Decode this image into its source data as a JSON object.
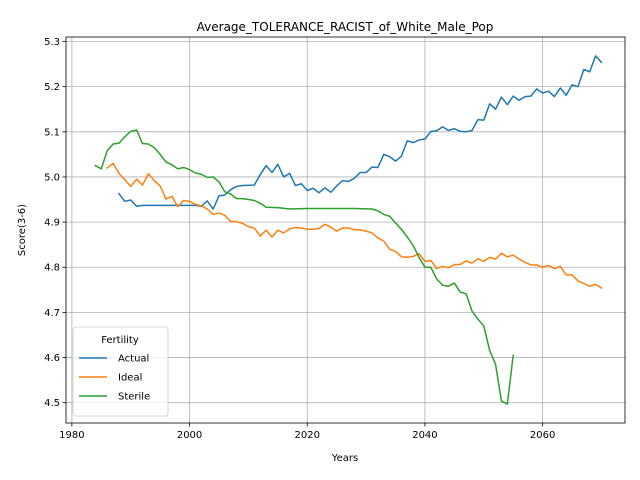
{
  "chart_data": {
    "type": "line",
    "title": "Average_TOLERANCE_RACIST_of_White_Male_Pop",
    "xlabel": "Years",
    "ylabel": "Score(3-6)",
    "xlim": [
      1979,
      2074
    ],
    "ylim": [
      4.455,
      5.31
    ],
    "xticks": [
      1980,
      2000,
      2020,
      2040,
      2060
    ],
    "yticks": [
      4.5,
      4.6,
      4.7,
      4.8,
      4.9,
      5.0,
      5.1,
      5.2,
      5.3
    ],
    "xtick_labels": [
      "1980",
      "2000",
      "2020",
      "2040",
      "2060"
    ],
    "ytick_labels": [
      "4.5",
      "4.6",
      "4.7",
      "4.8",
      "4.9",
      "5.0",
      "5.1",
      "5.2",
      "5.3"
    ],
    "grid": true,
    "legend": {
      "title": "Fertility",
      "placement": "lower-left"
    },
    "series": [
      {
        "name": "Actual",
        "color": "#1f77b4",
        "points": [
          [
            1988,
            4.963
          ],
          [
            1989,
            4.946
          ],
          [
            1990,
            4.949
          ],
          [
            1991,
            4.935
          ],
          [
            1992,
            4.937
          ],
          [
            1993,
            4.937
          ],
          [
            1995,
            4.937
          ],
          [
            1997,
            4.937
          ],
          [
            1999,
            4.937
          ],
          [
            2001,
            4.937
          ],
          [
            2002,
            4.935
          ],
          [
            2003,
            4.947
          ],
          [
            2004,
            4.929
          ],
          [
            2005,
            4.958
          ],
          [
            2006,
            4.96
          ],
          [
            2007,
            4.972
          ],
          [
            2008,
            4.979
          ],
          [
            2009,
            4.981
          ],
          [
            2011,
            4.982
          ],
          [
            2012,
            5.005
          ],
          [
            2013,
            5.025
          ],
          [
            2014,
            5.01
          ],
          [
            2015,
            5.028
          ],
          [
            2016,
            5.0
          ],
          [
            2017,
            5.008
          ],
          [
            2018,
            4.981
          ],
          [
            2019,
            4.985
          ],
          [
            2020,
            4.97
          ],
          [
            2021,
            4.975
          ],
          [
            2022,
            4.965
          ],
          [
            2023,
            4.976
          ],
          [
            2024,
            4.966
          ],
          [
            2025,
            4.98
          ],
          [
            2026,
            4.992
          ],
          [
            2027,
            4.99
          ],
          [
            2028,
            4.997
          ],
          [
            2029,
            5.01
          ],
          [
            2030,
            5.01
          ],
          [
            2031,
            5.022
          ],
          [
            2032,
            5.021
          ],
          [
            2033,
            5.05
          ],
          [
            2034,
            5.045
          ],
          [
            2035,
            5.035
          ],
          [
            2036,
            5.046
          ],
          [
            2037,
            5.08
          ],
          [
            2038,
            5.076
          ],
          [
            2039,
            5.082
          ],
          [
            2040,
            5.084
          ],
          [
            2041,
            5.101
          ],
          [
            2042,
            5.102
          ],
          [
            2043,
            5.111
          ],
          [
            2044,
            5.103
          ],
          [
            2045,
            5.107
          ],
          [
            2046,
            5.101
          ],
          [
            2047,
            5.1
          ],
          [
            2048,
            5.103
          ],
          [
            2049,
            5.127
          ],
          [
            2050,
            5.126
          ],
          [
            2051,
            5.162
          ],
          [
            2052,
            5.15
          ],
          [
            2053,
            5.177
          ],
          [
            2054,
            5.16
          ],
          [
            2055,
            5.179
          ],
          [
            2056,
            5.17
          ],
          [
            2057,
            5.178
          ],
          [
            2058,
            5.179
          ],
          [
            2059,
            5.195
          ],
          [
            2060,
            5.186
          ],
          [
            2061,
            5.19
          ],
          [
            2062,
            5.178
          ],
          [
            2063,
            5.197
          ],
          [
            2064,
            5.181
          ],
          [
            2065,
            5.204
          ],
          [
            2066,
            5.2
          ],
          [
            2067,
            5.238
          ],
          [
            2068,
            5.233
          ],
          [
            2069,
            5.268
          ],
          [
            2070,
            5.254
          ]
        ]
      },
      {
        "name": "Ideal",
        "color": "#ff7f0e",
        "points": [
          [
            1986,
            5.02
          ],
          [
            1987,
            5.03
          ],
          [
            1988,
            5.008
          ],
          [
            1989,
            4.994
          ],
          [
            1990,
            4.979
          ],
          [
            1991,
            4.995
          ],
          [
            1992,
            4.982
          ],
          [
            1993,
            5.007
          ],
          [
            1994,
            4.992
          ],
          [
            1995,
            4.98
          ],
          [
            1996,
            4.951
          ],
          [
            1997,
            4.957
          ],
          [
            1998,
            4.934
          ],
          [
            1999,
            4.948
          ],
          [
            2000,
            4.946
          ],
          [
            2001,
            4.939
          ],
          [
            2002,
            4.936
          ],
          [
            2003,
            4.929
          ],
          [
            2004,
            4.917
          ],
          [
            2005,
            4.92
          ],
          [
            2006,
            4.915
          ],
          [
            2007,
            4.901
          ],
          [
            2008,
            4.901
          ],
          [
            2009,
            4.897
          ],
          [
            2010,
            4.89
          ],
          [
            2011,
            4.887
          ],
          [
            2012,
            4.869
          ],
          [
            2013,
            4.882
          ],
          [
            2014,
            4.867
          ],
          [
            2015,
            4.882
          ],
          [
            2016,
            4.876
          ],
          [
            2017,
            4.885
          ],
          [
            2018,
            4.888
          ],
          [
            2019,
            4.887
          ],
          [
            2020,
            4.884
          ],
          [
            2021,
            4.884
          ],
          [
            2022,
            4.886
          ],
          [
            2023,
            4.895
          ],
          [
            2024,
            4.889
          ],
          [
            2025,
            4.88
          ],
          [
            2026,
            4.887
          ],
          [
            2027,
            4.887
          ],
          [
            2028,
            4.883
          ],
          [
            2029,
            4.883
          ],
          [
            2030,
            4.88
          ],
          [
            2031,
            4.876
          ],
          [
            2032,
            4.865
          ],
          [
            2033,
            4.858
          ],
          [
            2034,
            4.84
          ],
          [
            2035,
            4.835
          ],
          [
            2036,
            4.823
          ],
          [
            2037,
            4.822
          ],
          [
            2038,
            4.824
          ],
          [
            2039,
            4.83
          ],
          [
            2040,
            4.813
          ],
          [
            2041,
            4.815
          ],
          [
            2042,
            4.797
          ],
          [
            2043,
            4.802
          ],
          [
            2044,
            4.799
          ],
          [
            2045,
            4.806
          ],
          [
            2046,
            4.806
          ],
          [
            2047,
            4.814
          ],
          [
            2048,
            4.809
          ],
          [
            2049,
            4.819
          ],
          [
            2050,
            4.813
          ],
          [
            2051,
            4.822
          ],
          [
            2052,
            4.818
          ],
          [
            2053,
            4.831
          ],
          [
            2054,
            4.823
          ],
          [
            2055,
            4.827
          ],
          [
            2056,
            4.818
          ],
          [
            2057,
            4.811
          ],
          [
            2058,
            4.805
          ],
          [
            2059,
            4.805
          ],
          [
            2060,
            4.8
          ],
          [
            2061,
            4.804
          ],
          [
            2062,
            4.797
          ],
          [
            2063,
            4.802
          ],
          [
            2064,
            4.783
          ],
          [
            2065,
            4.783
          ],
          [
            2066,
            4.77
          ],
          [
            2067,
            4.764
          ],
          [
            2068,
            4.758
          ],
          [
            2069,
            4.762
          ],
          [
            2070,
            4.754
          ]
        ]
      },
      {
        "name": "Sterile",
        "color": "#2ca02c",
        "points": [
          [
            1984,
            5.025
          ],
          [
            1985,
            5.018
          ],
          [
            1986,
            5.058
          ],
          [
            1987,
            5.073
          ],
          [
            1988,
            5.075
          ],
          [
            1989,
            5.089
          ],
          [
            1990,
            5.101
          ],
          [
            1991,
            5.104
          ],
          [
            1992,
            5.074
          ],
          [
            1993,
            5.073
          ],
          [
            1994,
            5.065
          ],
          [
            1995,
            5.05
          ],
          [
            1996,
            5.033
          ],
          [
            1997,
            5.027
          ],
          [
            1998,
            5.018
          ],
          [
            1999,
            5.021
          ],
          [
            2000,
            5.016
          ],
          [
            2001,
            5.009
          ],
          [
            2002,
            5.006
          ],
          [
            2003,
            4.999
          ],
          [
            2004,
            5.0
          ],
          [
            2005,
            4.989
          ],
          [
            2006,
            4.967
          ],
          [
            2007,
            4.962
          ],
          [
            2008,
            4.952
          ],
          [
            2009,
            4.952
          ],
          [
            2010,
            4.95
          ],
          [
            2011,
            4.948
          ],
          [
            2012,
            4.942
          ],
          [
            2013,
            4.933
          ],
          [
            2015,
            4.932
          ],
          [
            2017,
            4.929
          ],
          [
            2020,
            4.93
          ],
          [
            2025,
            4.93
          ],
          [
            2028,
            4.93
          ],
          [
            2031,
            4.929
          ],
          [
            2032,
            4.925
          ],
          [
            2033,
            4.917
          ],
          [
            2034,
            4.913
          ],
          [
            2035,
            4.898
          ],
          [
            2036,
            4.884
          ],
          [
            2037,
            4.867
          ],
          [
            2038,
            4.848
          ],
          [
            2039,
            4.822
          ],
          [
            2040,
            4.8
          ],
          [
            2041,
            4.8
          ],
          [
            2042,
            4.774
          ],
          [
            2043,
            4.76
          ],
          [
            2044,
            4.758
          ],
          [
            2045,
            4.765
          ],
          [
            2046,
            4.745
          ],
          [
            2047,
            4.741
          ],
          [
            2048,
            4.703
          ],
          [
            2049,
            4.685
          ],
          [
            2050,
            4.67
          ],
          [
            2051,
            4.616
          ],
          [
            2052,
            4.585
          ],
          [
            2053,
            4.504
          ],
          [
            2054,
            4.497
          ],
          [
            2055,
            4.605
          ]
        ]
      }
    ]
  }
}
